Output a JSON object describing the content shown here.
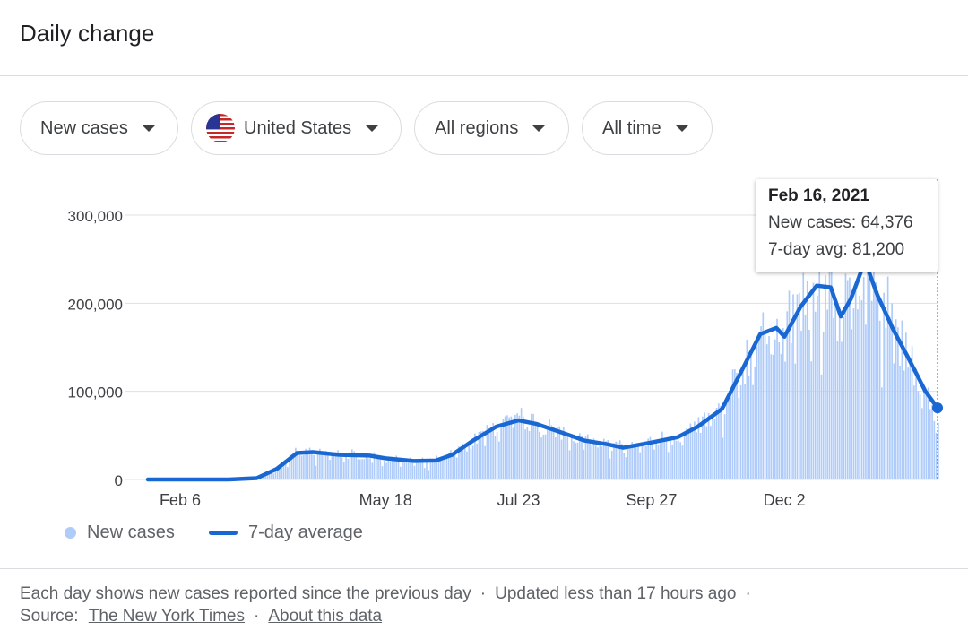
{
  "header": {
    "title": "Daily change"
  },
  "filters": {
    "metric": "New cases",
    "country": "United States",
    "region": "All regions",
    "time": "All time"
  },
  "tooltip": {
    "date": "Feb 16, 2021",
    "new_cases_label": "New cases: 64,376",
    "avg_label": "7-day avg: 81,200"
  },
  "legend": {
    "bars": "New cases",
    "line": "7-day average"
  },
  "footer": {
    "line1_a": "Each day shows new cases reported since the previous day",
    "line1_b": "Updated less than 17 hours ago",
    "source_label": "Source:",
    "source_link": "The New York Times",
    "about_link": "About this data",
    "separator": "·"
  },
  "colors": {
    "bars": "#aecbfa",
    "line": "#1967d2",
    "grid": "#e0e0e0"
  },
  "chart_data": {
    "type": "bar",
    "xlabel": "",
    "ylabel": "",
    "ylim": [
      0,
      300000
    ],
    "yticks": [
      0,
      100000,
      200000,
      300000
    ],
    "ytick_labels": [
      "0",
      "100,000",
      "200,000",
      "300,000"
    ],
    "xtick_labels": [
      "May 18",
      "Jul 23",
      "Sep 27",
      "Dec 2",
      "Feb 6"
    ],
    "x_range": [
      "2020-01-21",
      "2021-02-16"
    ],
    "series": [
      {
        "name": "7-day average",
        "kind": "line",
        "points": [
          [
            "2020-01-21",
            0
          ],
          [
            "2020-03-01",
            50
          ],
          [
            "2020-03-15",
            1500
          ],
          [
            "2020-03-25",
            12000
          ],
          [
            "2020-04-04",
            30000
          ],
          [
            "2020-04-12",
            31000
          ],
          [
            "2020-04-25",
            28000
          ],
          [
            "2020-05-10",
            27000
          ],
          [
            "2020-05-18",
            24000
          ],
          [
            "2020-06-01",
            21000
          ],
          [
            "2020-06-12",
            21500
          ],
          [
            "2020-06-20",
            28000
          ],
          [
            "2020-07-01",
            45000
          ],
          [
            "2020-07-12",
            60000
          ],
          [
            "2020-07-23",
            67000
          ],
          [
            "2020-08-01",
            63000
          ],
          [
            "2020-08-15",
            52000
          ],
          [
            "2020-08-25",
            44000
          ],
          [
            "2020-09-05",
            40000
          ],
          [
            "2020-09-13",
            36000
          ],
          [
            "2020-09-27",
            42000
          ],
          [
            "2020-10-10",
            48000
          ],
          [
            "2020-10-20",
            60000
          ],
          [
            "2020-11-01",
            80000
          ],
          [
            "2020-11-10",
            120000
          ],
          [
            "2020-11-20",
            165000
          ],
          [
            "2020-11-28",
            172000
          ],
          [
            "2020-12-02",
            162000
          ],
          [
            "2020-12-10",
            196000
          ],
          [
            "2020-12-18",
            220000
          ],
          [
            "2020-12-25",
            218000
          ],
          [
            "2020-12-30",
            185000
          ],
          [
            "2021-01-04",
            205000
          ],
          [
            "2021-01-11",
            248000
          ],
          [
            "2021-01-17",
            210000
          ],
          [
            "2021-01-25",
            170000
          ],
          [
            "2021-02-01",
            140000
          ],
          [
            "2021-02-06",
            118000
          ],
          [
            "2021-02-10",
            100000
          ],
          [
            "2021-02-16",
            81200
          ]
        ]
      },
      {
        "name": "New cases",
        "kind": "bars",
        "note_noise": "daily bars scatter around the 7-day average",
        "points": [
          [
            "2020-01-21",
            0
          ],
          [
            "2020-03-01",
            50
          ],
          [
            "2020-03-15",
            1500
          ],
          [
            "2020-03-25",
            12000
          ],
          [
            "2020-04-04",
            30000
          ],
          [
            "2020-04-12",
            31000
          ],
          [
            "2020-04-25",
            28000
          ],
          [
            "2020-05-10",
            27000
          ],
          [
            "2020-05-18",
            24000
          ],
          [
            "2020-06-01",
            21000
          ],
          [
            "2020-06-12",
            21500
          ],
          [
            "2020-06-20",
            28000
          ],
          [
            "2020-07-01",
            45000
          ],
          [
            "2020-07-12",
            60000
          ],
          [
            "2020-07-23",
            67000
          ],
          [
            "2020-08-01",
            63000
          ],
          [
            "2020-08-15",
            52000
          ],
          [
            "2020-08-25",
            44000
          ],
          [
            "2020-09-05",
            40000
          ],
          [
            "2020-09-13",
            36000
          ],
          [
            "2020-09-27",
            42000
          ],
          [
            "2020-10-10",
            48000
          ],
          [
            "2020-10-20",
            60000
          ],
          [
            "2020-11-01",
            80000
          ],
          [
            "2020-11-10",
            120000
          ],
          [
            "2020-11-20",
            165000
          ],
          [
            "2020-11-28",
            172000
          ],
          [
            "2020-12-02",
            162000
          ],
          [
            "2020-12-10",
            196000
          ],
          [
            "2020-12-18",
            220000
          ],
          [
            "2020-12-25",
            218000
          ],
          [
            "2020-12-30",
            185000
          ],
          [
            "2021-01-04",
            205000
          ],
          [
            "2021-01-11",
            248000
          ],
          [
            "2021-01-17",
            210000
          ],
          [
            "2021-01-25",
            170000
          ],
          [
            "2021-02-01",
            140000
          ],
          [
            "2021-02-06",
            118000
          ],
          [
            "2021-02-10",
            100000
          ],
          [
            "2021-02-16",
            64376
          ]
        ]
      }
    ],
    "highlight": {
      "date": "2021-02-16",
      "new_cases": 64376,
      "avg": 81200
    }
  }
}
